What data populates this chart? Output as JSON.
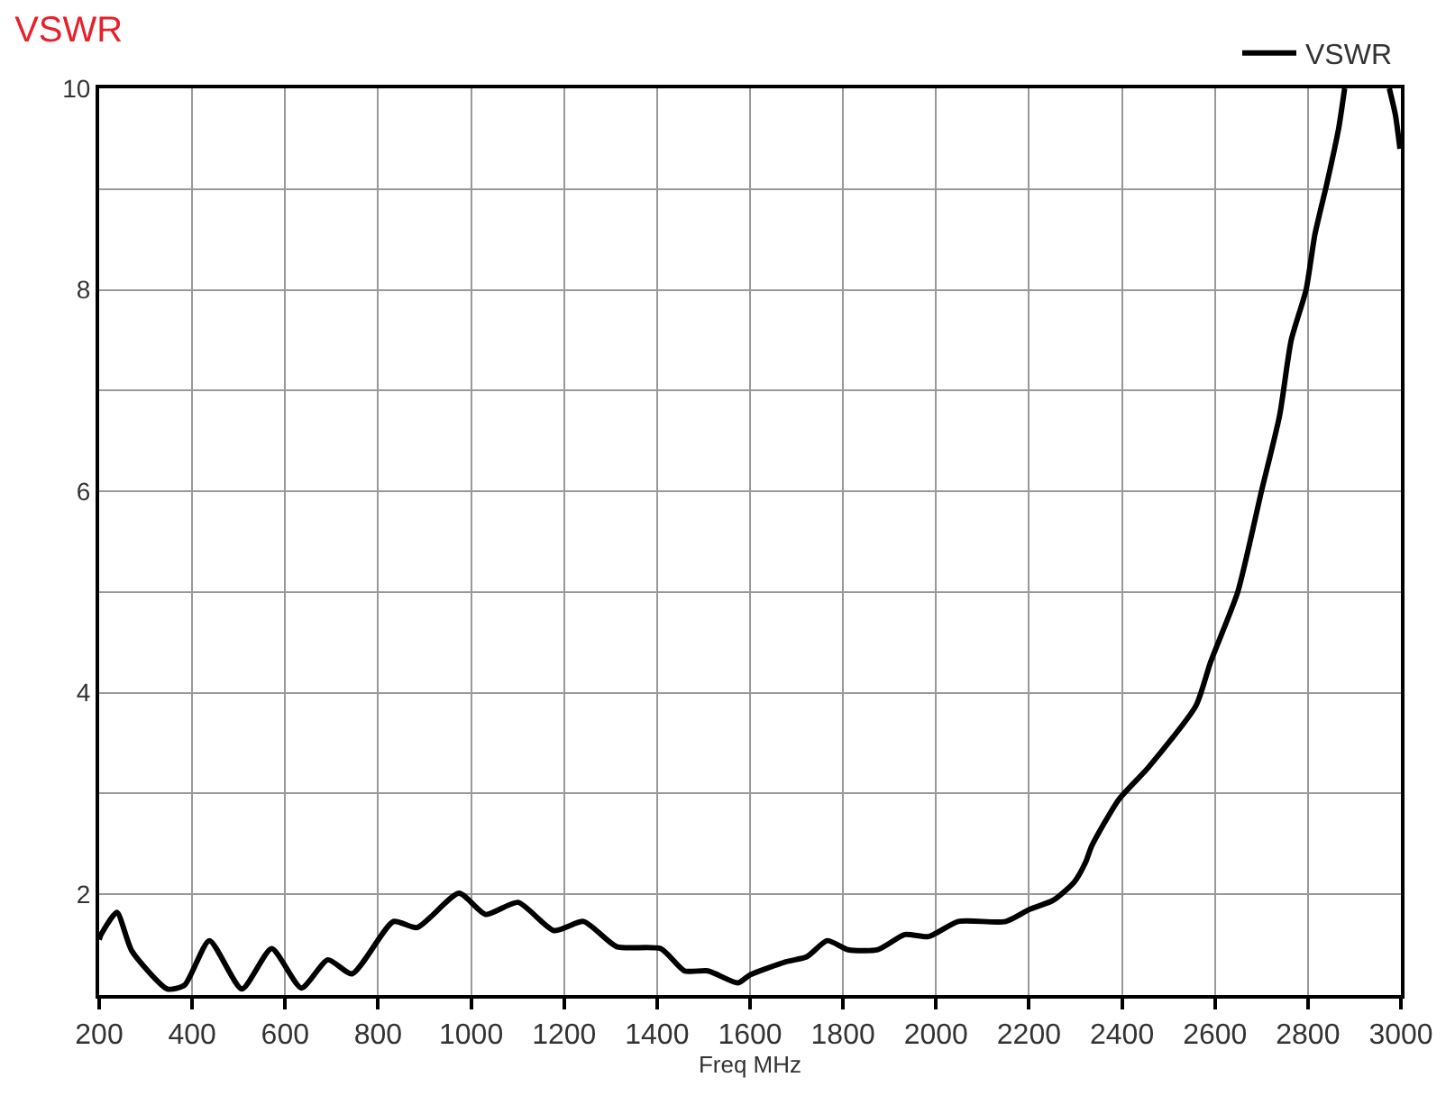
{
  "chart_data": {
    "type": "line",
    "title": "VSWR",
    "xlabel": "Freq MHz",
    "x": [
      200,
      204,
      238,
      270,
      347,
      384,
      437,
      507,
      571,
      635,
      692,
      744,
      833,
      884,
      974,
      1031,
      1101,
      1178,
      1242,
      1313,
      1408,
      1459,
      1510,
      1574,
      1600,
      1677,
      1722,
      1766,
      1811,
      1875,
      1933,
      1984,
      2048,
      2150,
      2201,
      2252,
      2297,
      2322,
      2335,
      2393,
      2457,
      2559,
      2591,
      2649,
      2700,
      2739,
      2764,
      2796,
      2815,
      2841,
      2866,
      2879,
      2920,
      2975,
      2988,
      2998
    ],
    "series": [
      {
        "name": "VSWR",
        "color": "#000000",
        "values": [
          1.55,
          1.6,
          1.82,
          1.44,
          1.06,
          1.1,
          1.54,
          1.06,
          1.46,
          1.07,
          1.35,
          1.21,
          1.73,
          1.67,
          2.01,
          1.8,
          1.92,
          1.64,
          1.73,
          1.48,
          1.46,
          1.24,
          1.24,
          1.12,
          1.2,
          1.33,
          1.38,
          1.54,
          1.45,
          1.45,
          1.6,
          1.58,
          1.73,
          1.73,
          1.85,
          1.94,
          2.12,
          2.32,
          2.48,
          2.94,
          3.26,
          3.87,
          4.31,
          5.0,
          6.0,
          6.75,
          7.5,
          8.0,
          8.55,
          9.06,
          9.6,
          10,
          null,
          10,
          9.74,
          9.4
        ]
      }
    ],
    "xlim": [
      200,
      3000
    ],
    "xticks": [
      200,
      400,
      600,
      800,
      1000,
      1200,
      1400,
      1600,
      1800,
      2000,
      2200,
      2400,
      2600,
      2800,
      3000
    ],
    "ylim": [
      1,
      10
    ],
    "yticks": [
      {
        "value": 1,
        "label": null
      },
      2,
      {
        "value": 3,
        "label": null
      },
      4,
      {
        "value": 5,
        "label": null
      },
      6,
      {
        "value": 7,
        "label": null
      },
      8,
      {
        "value": 9,
        "label": null
      },
      10
    ],
    "grid": true,
    "legend": "top right",
    "marker": "none",
    "line_style": "solid"
  }
}
